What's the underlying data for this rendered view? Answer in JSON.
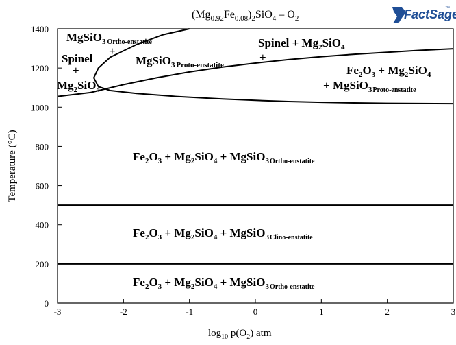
{
  "chart_data": {
    "type": "line",
    "title": {
      "pre": "(Mg",
      "sub1": "0.92",
      "mid1": "Fe",
      "sub2": "0.08",
      "mid2": ")",
      "sub3": "2",
      "mid3": "SiO",
      "sub4": "4",
      "mid4": " – O",
      "sub5": "2"
    },
    "logo": {
      "text": "FactSage",
      "tm": "™",
      "color": "#1f4e96"
    },
    "xlabel": {
      "pre": "log",
      "sub": "10",
      "post": " p(O",
      "sub2": "2",
      "post2": ") atm"
    },
    "ylabel": "Temperature (°C)",
    "xlim": [
      -3,
      3
    ],
    "ylim": [
      0,
      1400
    ],
    "xticks": [
      "-3",
      "-2",
      "-1",
      "0",
      "1",
      "2",
      "3"
    ],
    "yticks": [
      "0",
      "200",
      "400",
      "600",
      "800",
      "1000",
      "1200",
      "1400"
    ],
    "grid": false,
    "series": [
      {
        "points": [
          [
            -1.0,
            1400
          ],
          [
            -1.4,
            1370
          ],
          [
            -1.8,
            1320
          ],
          [
            -2.2,
            1255
          ],
          [
            -2.38,
            1200
          ],
          [
            -2.45,
            1150
          ],
          [
            -2.38,
            1105
          ],
          [
            -2.2,
            1085
          ],
          [
            -1.8,
            1070
          ],
          [
            -1.2,
            1055
          ],
          [
            -0.5,
            1042
          ],
          [
            0,
            1035
          ],
          [
            0.5,
            1029
          ],
          [
            1.0,
            1025
          ],
          [
            1.5,
            1022
          ],
          [
            2.0,
            1020
          ],
          [
            2.5,
            1019
          ],
          [
            3.0,
            1018
          ]
        ]
      },
      {
        "points": [
          [
            -3.0,
            1055
          ],
          [
            -2.5,
            1075
          ],
          [
            -2.0,
            1115
          ],
          [
            -1.5,
            1150
          ],
          [
            -1.0,
            1180
          ],
          [
            -0.5,
            1205
          ],
          [
            0,
            1225
          ],
          [
            0.5,
            1243
          ],
          [
            1.0,
            1258
          ],
          [
            1.5,
            1270
          ],
          [
            2.0,
            1280
          ],
          [
            2.5,
            1290
          ],
          [
            3.0,
            1298
          ]
        ]
      },
      {
        "points": [
          [
            -3.0,
            500
          ],
          [
            3.0,
            500
          ]
        ]
      },
      {
        "points": [
          [
            -3.0,
            200
          ],
          [
            3.0,
            200
          ]
        ]
      }
    ],
    "region_labels": [
      {
        "lines": [
          "Spinel",
          "+",
          "Mg2SiO4"
        ]
      },
      {
        "lines": [
          "MgSiO3 Ortho-enstatite",
          "+"
        ]
      },
      {
        "lines": [
          "MgSiO3 Proto-enstatite"
        ]
      },
      {
        "lines": [
          "Spinel + Mg2SiO4",
          "+"
        ]
      },
      {
        "lines": [
          "Fe2O3 + Mg2SiO4",
          "+ MgSiO3 Proto-enstatite"
        ]
      },
      {
        "lines": [
          "Fe2O3 + Mg2SiO4 + MgSiO3 Ortho-enstatite"
        ]
      },
      {
        "lines": [
          "Fe2O3 + Mg2SiO4 + MgSiO3 Clino-enstatite"
        ]
      },
      {
        "lines": [
          "Fe2O3 + Mg2SiO4 + MgSiO3 Ortho-enstatite"
        ]
      }
    ],
    "text": {
      "spinel": "Spinel",
      "plus": "+",
      "mg": "Mg",
      "sio": "SiO",
      "two": "2",
      "three": "3",
      "four": "4",
      "fe": "Fe",
      "o": "O",
      "ortho": "Ortho-enstatite",
      "proto": "Proto-enstatite",
      "clino": "Clino-enstatite",
      "plus_sp": " + ",
      "plus_lead": "+ "
    }
  }
}
